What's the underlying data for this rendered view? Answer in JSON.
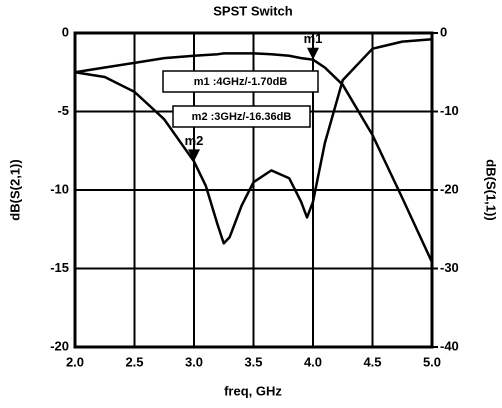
{
  "chart_data": {
    "type": "line",
    "title": "SPST Switch",
    "xlabel": "freq, GHz",
    "ylabel": "dB(S(2,1))",
    "y2label": "dB(S(1,1))",
    "x": [
      2.0,
      2.25,
      2.5,
      2.75,
      3.0,
      3.1,
      3.2,
      3.25,
      3.3,
      3.4,
      3.5,
      3.65,
      3.8,
      3.9,
      3.95,
      4.0,
      4.1,
      4.25,
      4.5,
      4.75,
      5.0
    ],
    "series": [
      {
        "name": "dB(S(2,1))",
        "color": "#000000",
        "axis": "y",
        "values": [
          -2.5,
          -2.2,
          -1.9,
          -1.6,
          -1.45,
          -1.4,
          -1.35,
          -1.3,
          -1.3,
          -1.3,
          -1.3,
          -1.35,
          -1.45,
          -1.6,
          -1.65,
          -1.7,
          -2.2,
          -3.3,
          -6.5,
          -10.5,
          -14.6
        ]
      },
      {
        "name": "dB(S(1,1))",
        "color": "#000000",
        "axis": "y2",
        "values": [
          -5,
          -5.6,
          -7.5,
          -11,
          -16.36,
          -19.5,
          -24.5,
          -26.8,
          -26,
          -22,
          -19,
          -17.5,
          -18.5,
          -21.5,
          -23.5,
          -21.5,
          -14,
          -6,
          -2,
          -1.1,
          -0.8
        ]
      }
    ],
    "markers": [
      {
        "name": "m1",
        "series": 0,
        "x": 4,
        "y": -1.7,
        "label": "m1 :4GHz/-1.70dB"
      },
      {
        "name": "m2",
        "series": 1,
        "x": 3,
        "y": -16.36,
        "label": "m2 :3GHz/-16.36dB"
      }
    ],
    "xlim": [
      2,
      5
    ],
    "xticks": [
      {
        "value": 2,
        "label": "2.0"
      },
      2.5,
      {
        "value": 3,
        "label": "3.0"
      },
      3.5,
      {
        "value": 4,
        "label": "4.0"
      },
      4.5,
      {
        "value": 5,
        "label": "5.0"
      }
    ],
    "ylim": [
      -20,
      0
    ],
    "yticks": [
      0,
      -5,
      -10,
      -15,
      -20
    ],
    "y2lim": [
      -40,
      0
    ],
    "y2ticks": [
      0,
      -10,
      -20,
      -30,
      -40
    ],
    "grid": true
  }
}
